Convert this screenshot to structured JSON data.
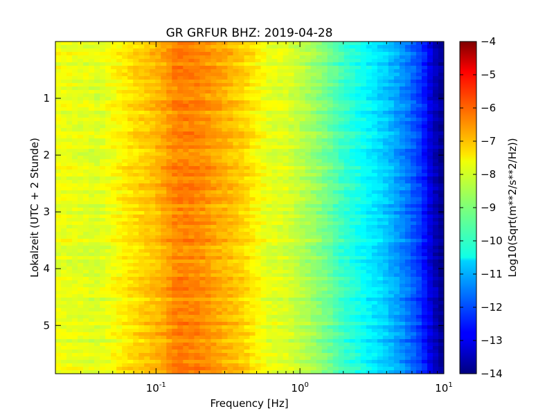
{
  "chart_data": {
    "type": "heatmap",
    "title": "GR GRFUR BHZ: 2019-04-28",
    "xlabel": "Frequency [Hz]",
    "ylabel": "Lokalzeit (UTC + 2 Stunde)",
    "x_scale": "log",
    "xlim": [
      0.02,
      10
    ],
    "ylim": [
      5.85,
      0
    ],
    "x_ticks": [
      {
        "value": 0.1,
        "base": "10",
        "exp": "-1"
      },
      {
        "value": 1,
        "base": "10",
        "exp": "0"
      },
      {
        "value": 10,
        "base": "10",
        "exp": "1"
      }
    ],
    "y_ticks": [
      {
        "value": 1,
        "label": "1"
      },
      {
        "value": 2,
        "label": "2"
      },
      {
        "value": 3,
        "label": "3"
      },
      {
        "value": 4,
        "label": "4"
      },
      {
        "value": 5,
        "label": "5"
      }
    ],
    "colorbar": {
      "label": "Log10(Sqrt(m**2/s**2/Hz))",
      "colormap": "jet",
      "range": [
        -14,
        -4
      ],
      "ticks": [
        "-4",
        "-5",
        "-6",
        "-7",
        "-8",
        "-9",
        "-10",
        "-11",
        "-12",
        "-13",
        "-14"
      ]
    },
    "spectrum_profile": {
      "frequencies": [
        0.02,
        0.04,
        0.06,
        0.08,
        0.1,
        0.12,
        0.14,
        0.2,
        0.3,
        0.4,
        0.5,
        0.6,
        0.8,
        1.0,
        1.3,
        1.6,
        2.0,
        3.0,
        4.0,
        5.0,
        6.0,
        7.0,
        8.0,
        9.0,
        10.0
      ],
      "values": [
        -7.9,
        -8.1,
        -7.6,
        -7.3,
        -7.1,
        -6.8,
        -6.5,
        -6.6,
        -7.0,
        -7.3,
        -7.7,
        -8.0,
        -8.1,
        -8.4,
        -8.8,
        -9.2,
        -9.7,
        -10.3,
        -10.8,
        -11.3,
        -11.8,
        -12.3,
        -13.0,
        -13.6,
        -13.9
      ]
    }
  }
}
